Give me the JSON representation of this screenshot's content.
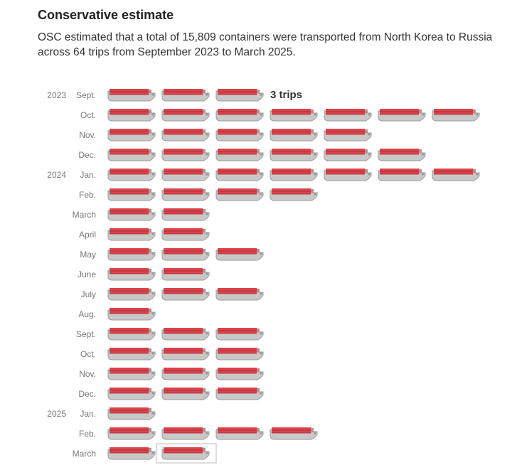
{
  "header": {
    "title": "Conservative estimate",
    "subtitle": "OSC estimated that a total of 15,809 containers were transported from North Korea to Russia across 64 trips from September 2023 to March 2025."
  },
  "colors": {
    "hull": "#c8c8c8",
    "hull_stroke": "#9a9a9a",
    "cargo": "#d9434b",
    "cargo_dark": "#a8262e",
    "label": "#777777",
    "highlight_box": "#bbbbbb"
  },
  "chart_data": {
    "type": "pictogram",
    "unit": "trip",
    "annotation": {
      "month_index": 0,
      "text": "3 trips"
    },
    "highlight": {
      "month_index": 18,
      "ship_index": 1
    },
    "months": [
      {
        "year": "2023",
        "month": "Sept.",
        "trips": 3
      },
      {
        "year": "",
        "month": "Oct.",
        "trips": 7
      },
      {
        "year": "",
        "month": "Nov.",
        "trips": 5
      },
      {
        "year": "",
        "month": "Dec.",
        "trips": 6
      },
      {
        "year": "2024",
        "month": "Jan.",
        "trips": 7
      },
      {
        "year": "",
        "month": "Feb.",
        "trips": 4
      },
      {
        "year": "",
        "month": "March",
        "trips": 2
      },
      {
        "year": "",
        "month": "April",
        "trips": 2
      },
      {
        "year": "",
        "month": "May",
        "trips": 3
      },
      {
        "year": "",
        "month": "June",
        "trips": 2
      },
      {
        "year": "",
        "month": "July",
        "trips": 3
      },
      {
        "year": "",
        "month": "Aug.",
        "trips": 1
      },
      {
        "year": "",
        "month": "Sept.",
        "trips": 3
      },
      {
        "year": "",
        "month": "Oct.",
        "trips": 3
      },
      {
        "year": "",
        "month": "Nov.",
        "trips": 3
      },
      {
        "year": "",
        "month": "Dec.",
        "trips": 3
      },
      {
        "year": "2025",
        "month": "Jan.",
        "trips": 1
      },
      {
        "year": "",
        "month": "Feb.",
        "trips": 4
      },
      {
        "year": "",
        "month": "March",
        "trips": 2
      }
    ]
  }
}
